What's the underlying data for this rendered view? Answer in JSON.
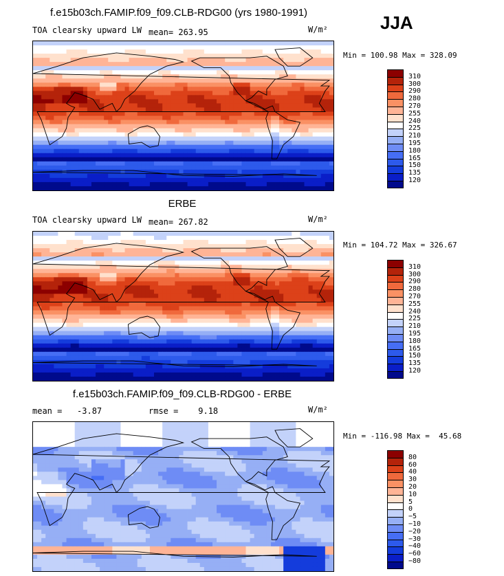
{
  "season": "JJA",
  "title_top": "f.e15b03ch.FAMIP.f09_f09.CLB-RDG00 (yrs 1980-1991)",
  "title_mid": "ERBE",
  "title_bot": "f.e15b03ch.FAMIP.f09_f09.CLB-RDG00 - ERBE",
  "panels": [
    {
      "variable": "TOA clearsky upward LW",
      "mean": "mean= 263.95",
      "units": "W/m²",
      "minmax": "Min = 100.98 Max = 328.09"
    },
    {
      "variable": "TOA clearsky upward LW",
      "mean": "mean= 267.82",
      "units": "W/m²",
      "minmax": "Min = 104.72 Max = 326.67"
    },
    {
      "variable": "mean =   -3.87",
      "mean": "rmse =    9.18",
      "units": "W/m²",
      "minmax": "Min = -116.98 Max =  45.68"
    }
  ],
  "chart_data": [
    {
      "type": "heatmap",
      "title": "TOA clearsky upward LW",
      "subtitle": "f.e15b03ch.FAMIP.f09_f09.CLB-RDG00 (yrs 1980-1991)",
      "units": "W/m2",
      "mean": 263.95,
      "min": 100.98,
      "max": 328.09,
      "levels": [
        120,
        135,
        150,
        165,
        180,
        195,
        210,
        225,
        240,
        255,
        270,
        280,
        290,
        300,
        310
      ],
      "level_labels": [
        "120",
        "135",
        "150",
        "165",
        "180",
        "195",
        "210",
        "225",
        "240",
        "255",
        "270",
        "280",
        "290",
        "300",
        "310"
      ],
      "colors": [
        "#000a8c",
        "#0a1ec8",
        "#143cdc",
        "#2d5aeb",
        "#466ef5",
        "#6e8cf5",
        "#96aff5",
        "#c3d2fa",
        "#ffffff",
        "#ffe1cd",
        "#ffb496",
        "#fa9164",
        "#f0693c",
        "#dc4119",
        "#b4230a",
        "#8c0000"
      ]
    },
    {
      "type": "heatmap",
      "title": "ERBE TOA clearsky upward LW",
      "units": "W/m2",
      "mean": 267.82,
      "min": 104.72,
      "max": 326.67,
      "levels": [
        120,
        135,
        150,
        165,
        180,
        195,
        210,
        225,
        240,
        255,
        270,
        280,
        290,
        300,
        310
      ],
      "level_labels": [
        "120",
        "135",
        "150",
        "165",
        "180",
        "195",
        "210",
        "225",
        "240",
        "255",
        "270",
        "280",
        "290",
        "300",
        "310"
      ],
      "colors": [
        "#000a8c",
        "#0a1ec8",
        "#143cdc",
        "#2d5aeb",
        "#466ef5",
        "#6e8cf5",
        "#96aff5",
        "#c3d2fa",
        "#ffffff",
        "#ffe1cd",
        "#ffb496",
        "#fa9164",
        "#f0693c",
        "#dc4119",
        "#b4230a",
        "#8c0000"
      ]
    },
    {
      "type": "heatmap",
      "title": "f.e15b03ch.FAMIP.f09_f09.CLB-RDG00 - ERBE",
      "units": "W/m2",
      "mean": -3.87,
      "rmse": 9.18,
      "min": -116.98,
      "max": 45.68,
      "levels": [
        -80,
        -60,
        -40,
        -30,
        -20,
        -10,
        -5,
        0,
        5,
        10,
        20,
        30,
        40,
        60,
        80
      ],
      "level_labels": [
        "−80",
        "−60",
        "−40",
        "−30",
        "−20",
        "−10",
        "−5",
        "0",
        "5",
        "10",
        "20",
        "30",
        "40",
        "60",
        "80"
      ],
      "colors": [
        "#000a8c",
        "#0a1ec8",
        "#143cdc",
        "#2d5aeb",
        "#466ef5",
        "#6e8cf5",
        "#96aff5",
        "#c3d2fa",
        "#ffffff",
        "#ffe1cd",
        "#ffb496",
        "#fa9164",
        "#f0693c",
        "#dc4119",
        "#b4230a",
        "#8c0000"
      ]
    }
  ]
}
